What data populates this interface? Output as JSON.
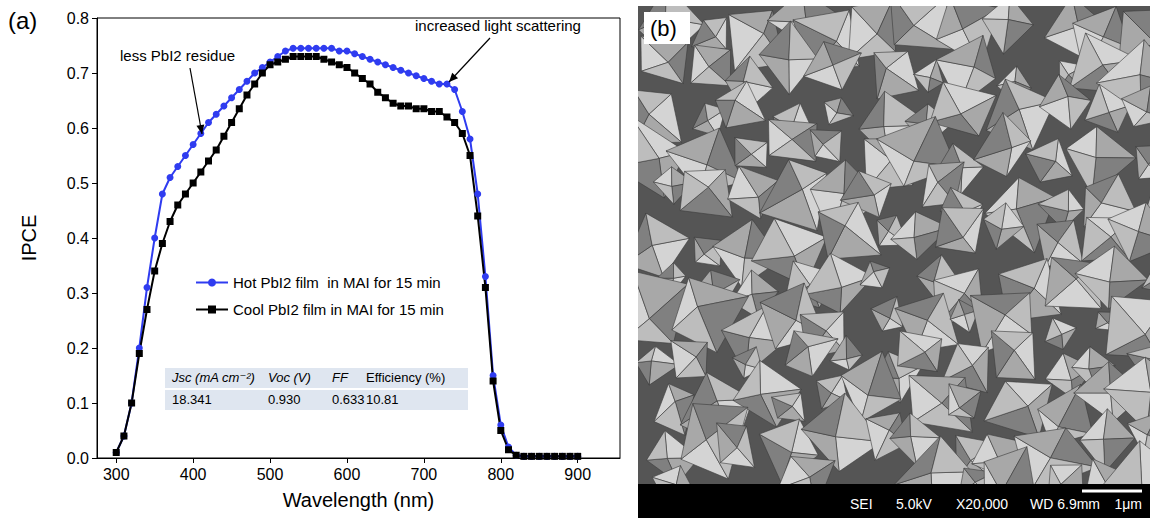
{
  "chart_data": {
    "type": "line",
    "title": "(a)",
    "x_label": "Wavelength (nm)",
    "y_label": "IPCE",
    "x": [
      300,
      310,
      320,
      330,
      340,
      350,
      360,
      370,
      380,
      390,
      400,
      410,
      420,
      430,
      440,
      450,
      460,
      470,
      480,
      490,
      500,
      510,
      520,
      530,
      540,
      550,
      560,
      570,
      580,
      590,
      600,
      610,
      620,
      630,
      640,
      650,
      660,
      670,
      680,
      690,
      700,
      710,
      720,
      730,
      740,
      750,
      760,
      770,
      780,
      790,
      800,
      810,
      820,
      830,
      840,
      850,
      860,
      870,
      880,
      890,
      900
    ],
    "series": [
      {
        "name": "Hot PbI2 film  in MAI for 15 min",
        "color": "#2f3cf0",
        "marker": "circle",
        "line_style": "solid",
        "values": [
          0.01,
          0.04,
          0.1,
          0.2,
          0.31,
          0.4,
          0.48,
          0.51,
          0.53,
          0.55,
          0.57,
          0.59,
          0.61,
          0.625,
          0.64,
          0.655,
          0.67,
          0.685,
          0.7,
          0.71,
          0.72,
          0.73,
          0.74,
          0.745,
          0.745,
          0.745,
          0.745,
          0.745,
          0.745,
          0.74,
          0.74,
          0.735,
          0.73,
          0.725,
          0.72,
          0.715,
          0.71,
          0.705,
          0.7,
          0.695,
          0.69,
          0.685,
          0.68,
          0.68,
          0.67,
          0.63,
          0.58,
          0.48,
          0.33,
          0.15,
          0.06,
          0.02,
          0.005,
          0.003,
          0.003,
          0.003,
          0.003,
          0.003,
          0.003,
          0.003,
          0.003
        ]
      },
      {
        "name": "Cool PbI2 film in MAI for 15 min",
        "color": "#000000",
        "marker": "square",
        "line_style": "solid",
        "values": [
          0.01,
          0.04,
          0.1,
          0.19,
          0.27,
          0.34,
          0.39,
          0.43,
          0.46,
          0.48,
          0.5,
          0.52,
          0.54,
          0.56,
          0.585,
          0.61,
          0.635,
          0.66,
          0.68,
          0.7,
          0.715,
          0.72,
          0.725,
          0.73,
          0.73,
          0.73,
          0.73,
          0.725,
          0.72,
          0.715,
          0.71,
          0.7,
          0.69,
          0.68,
          0.665,
          0.655,
          0.645,
          0.64,
          0.64,
          0.635,
          0.635,
          0.63,
          0.63,
          0.62,
          0.61,
          0.59,
          0.55,
          0.44,
          0.31,
          0.14,
          0.05,
          0.015,
          0.005,
          0.003,
          0.003,
          0.003,
          0.003,
          0.003,
          0.003,
          0.003,
          0.003
        ]
      }
    ],
    "xlim": [
      275,
      955
    ],
    "xticks": [
      300,
      400,
      500,
      600,
      700,
      800,
      900
    ],
    "ylim": [
      0,
      0.8
    ],
    "yticks": [
      {
        "value": 0,
        "label": "0.0"
      },
      0.1,
      0.2,
      0.3,
      0.4,
      0.5,
      0.6,
      0.7,
      0.8
    ],
    "grid": false,
    "legend": "left",
    "annotations": [
      "less PbI2 residue",
      "increased light scattering"
    ],
    "table": {
      "header": [
        "Jsc (mA cm⁻²)",
        "Voc (V)",
        "FF",
        "Efficiency (%)"
      ],
      "rows": [
        [
          "18.341",
          "0.930",
          "0.633",
          "10.81"
        ]
      ]
    }
  },
  "micrograph": {
    "label": "(b)",
    "info": [
      "SEI",
      "5.0kV",
      "X20,000",
      "WD 6.9mm"
    ],
    "scale_bar": "1μm"
  }
}
